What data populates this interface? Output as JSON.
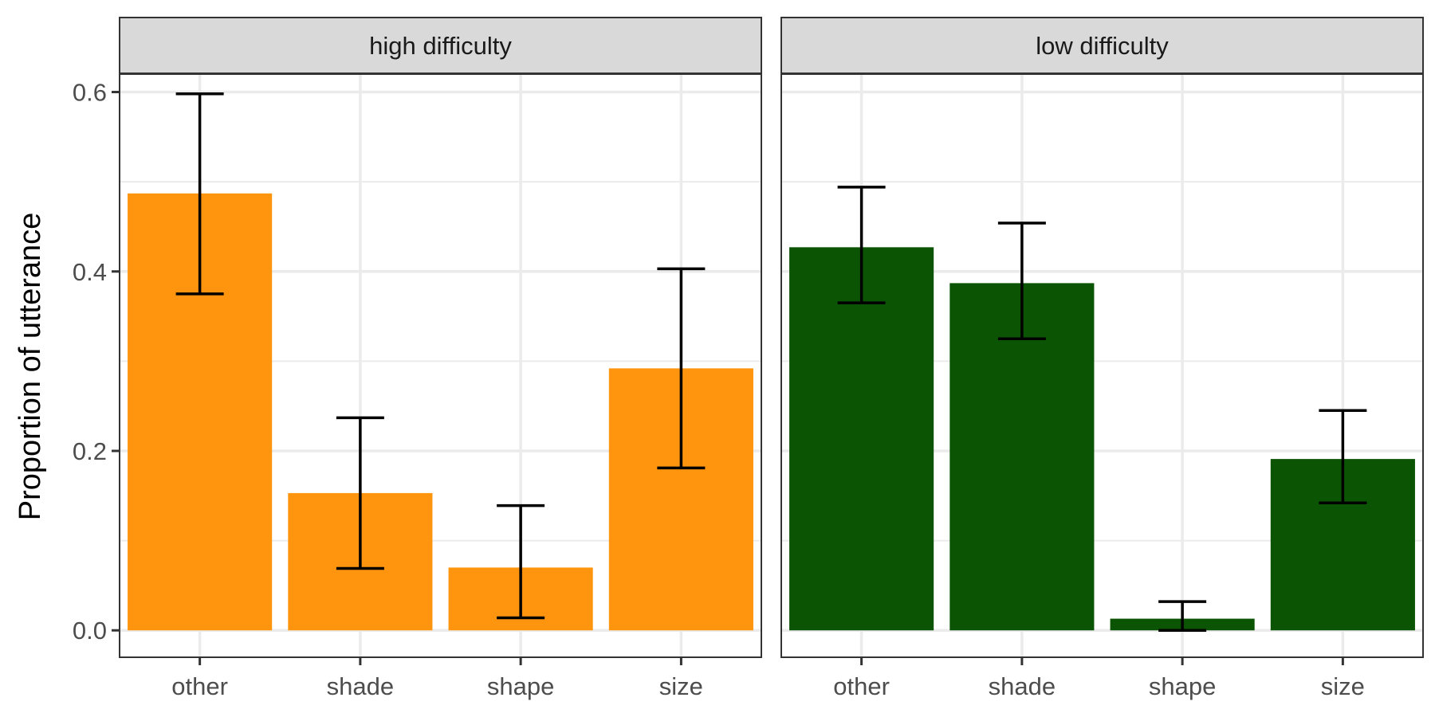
{
  "chart_data": {
    "type": "bar",
    "ylabel": "Proportion of utterance",
    "ylim": [
      -0.03,
      0.62
    ],
    "yticks": [
      0.0,
      0.2,
      0.4,
      0.6
    ],
    "ytick_labels": [
      "0.0",
      "0.2",
      "0.4",
      "0.6"
    ],
    "grid": true,
    "categories": [
      "other",
      "shade",
      "shape",
      "size"
    ],
    "panels": [
      {
        "title": "high difficulty",
        "color": "#FF950E",
        "values": [
          0.487,
          0.153,
          0.07,
          0.292
        ],
        "err_low": [
          0.375,
          0.069,
          0.014,
          0.181
        ],
        "err_high": [
          0.598,
          0.237,
          0.139,
          0.403
        ]
      },
      {
        "title": "low difficulty",
        "color": "#0B5404",
        "values": [
          0.427,
          0.387,
          0.013,
          0.191
        ],
        "err_low": [
          0.365,
          0.325,
          0.0,
          0.142
        ],
        "err_high": [
          0.494,
          0.454,
          0.032,
          0.245
        ]
      }
    ]
  }
}
